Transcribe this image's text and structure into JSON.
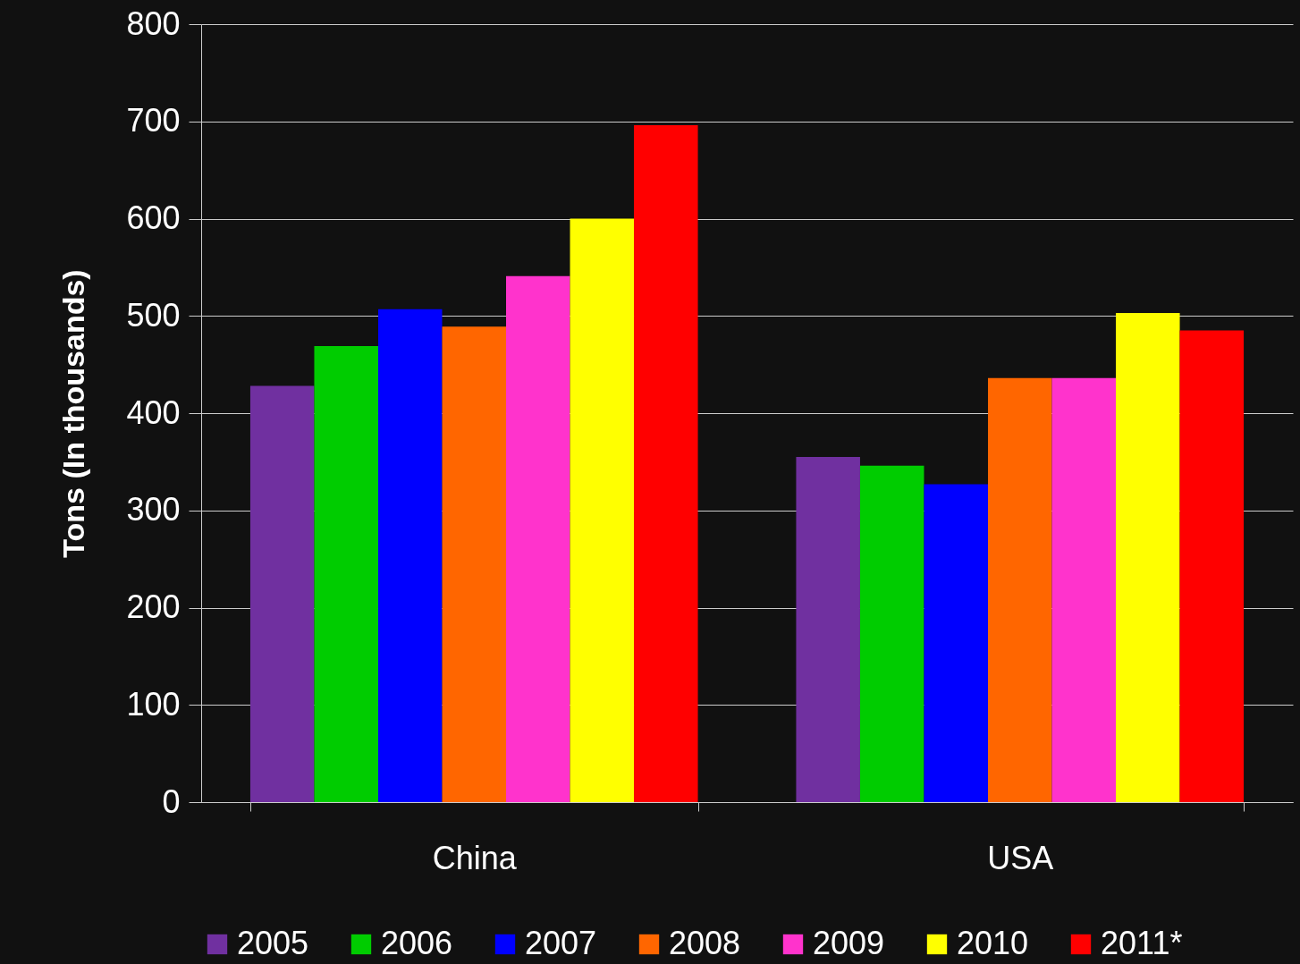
{
  "chart_data": {
    "type": "bar",
    "ylabel": "Tons (In thousands)",
    "categories": [
      "China",
      "USA"
    ],
    "series": [
      {
        "name": "2005",
        "color": "#7030a0",
        "values": [
          428,
          355
        ]
      },
      {
        "name": "2006",
        "color": "#00cc00",
        "values": [
          469,
          346
        ]
      },
      {
        "name": "2007",
        "color": "#0000ff",
        "values": [
          507,
          327
        ]
      },
      {
        "name": "2008",
        "color": "#ff6600",
        "values": [
          489,
          436
        ]
      },
      {
        "name": "2009",
        "color": "#ff33cc",
        "values": [
          541,
          436
        ]
      },
      {
        "name": "2010",
        "color": "#ffff00",
        "values": [
          600,
          503
        ]
      },
      {
        "name": "2011*",
        "color": "#ff0000",
        "values": [
          696,
          485
        ]
      }
    ],
    "ylim": [
      0,
      800
    ],
    "yticks": [
      0,
      100,
      200,
      300,
      400,
      500,
      600,
      700,
      800
    ],
    "grid": "y",
    "legend": "bottom"
  }
}
